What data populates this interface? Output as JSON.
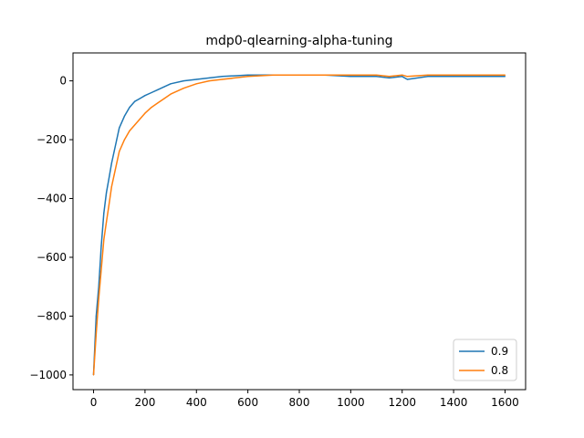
{
  "chart_data": {
    "type": "line",
    "title": "mdp0-qlearning-alpha-tuning",
    "xlabel": "",
    "ylabel": "",
    "xlim": [
      -80,
      1680
    ],
    "ylim": [
      -1050,
      95
    ],
    "x_ticks": [
      0,
      200,
      400,
      600,
      800,
      1000,
      1200,
      1400,
      1600
    ],
    "x_tick_labels": [
      "0",
      "200",
      "400",
      "600",
      "800",
      "1000",
      "1200",
      "1400",
      "1600"
    ],
    "y_ticks": [
      -1000,
      -800,
      -600,
      -400,
      -200,
      0
    ],
    "y_tick_labels": [
      "−1000",
      "−800",
      "−600",
      "−400",
      "−200",
      "0"
    ],
    "grid": false,
    "legend_position": "lower-right",
    "series": [
      {
        "name": "0.9",
        "color": "#1f77b4",
        "x": [
          0,
          10,
          20,
          30,
          40,
          50,
          60,
          70,
          80,
          90,
          100,
          120,
          140,
          160,
          180,
          200,
          225,
          250,
          275,
          300,
          350,
          400,
          450,
          500,
          600,
          700,
          800,
          900,
          1000,
          1100,
          1150,
          1200,
          1220,
          1300,
          1400,
          1500,
          1600
        ],
        "y": [
          -1000,
          -800,
          -700,
          -560,
          -450,
          -380,
          -330,
          -280,
          -240,
          -200,
          -160,
          -120,
          -90,
          -70,
          -60,
          -50,
          -40,
          -30,
          -20,
          -10,
          0,
          5,
          10,
          15,
          20,
          20,
          20,
          20,
          15,
          15,
          10,
          15,
          5,
          15,
          15,
          15,
          15
        ]
      },
      {
        "name": "0.8",
        "color": "#ff7f0e",
        "x": [
          0,
          10,
          20,
          30,
          40,
          50,
          60,
          70,
          80,
          90,
          100,
          120,
          140,
          160,
          180,
          200,
          225,
          250,
          275,
          300,
          350,
          400,
          450,
          500,
          600,
          700,
          800,
          900,
          1000,
          1100,
          1150,
          1200,
          1220,
          1300,
          1400,
          1500,
          1600
        ],
        "y": [
          -1000,
          -860,
          -740,
          -640,
          -540,
          -480,
          -420,
          -360,
          -320,
          -280,
          -240,
          -200,
          -170,
          -150,
          -130,
          -110,
          -90,
          -75,
          -60,
          -45,
          -25,
          -10,
          0,
          5,
          15,
          20,
          20,
          20,
          20,
          20,
          15,
          20,
          15,
          20,
          20,
          20,
          20
        ]
      }
    ]
  }
}
